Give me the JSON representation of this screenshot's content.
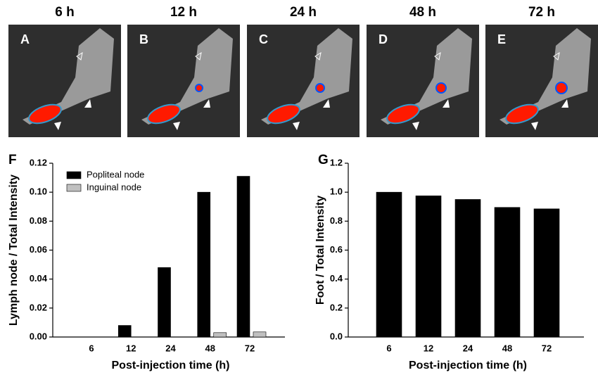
{
  "panels": [
    {
      "time": "6 h",
      "letter": "A"
    },
    {
      "time": "12 h",
      "letter": "B"
    },
    {
      "time": "24 h",
      "letter": "C"
    },
    {
      "time": "48 h",
      "letter": "D"
    },
    {
      "time": "72 h",
      "letter": "E"
    }
  ],
  "chart_data": [
    {
      "type": "bar",
      "panel": "F",
      "ylabel": "Lymph node / Total Intensity",
      "xlabel": "Post-injection time (h)",
      "categories": [
        "6",
        "12",
        "24",
        "48",
        "72"
      ],
      "series": [
        {
          "name": "Popliteal node",
          "color": "#000000",
          "values": [
            0,
            0.008,
            0.048,
            0.1,
            0.111
          ]
        },
        {
          "name": "Inguinal node",
          "color": "#c0c0c0",
          "values": [
            0,
            0,
            0,
            0.003,
            0.0035
          ]
        }
      ],
      "ylim": [
        0,
        0.12
      ],
      "yticks": [
        {
          "value": 0,
          "label": "0.00"
        },
        0.02,
        0.04,
        0.06,
        0.08,
        {
          "value": 0.1,
          "label": "0.10"
        },
        0.12
      ],
      "legend": "upper left"
    },
    {
      "type": "bar",
      "panel": "G",
      "ylabel": "Foot / Total Intensity",
      "xlabel": "Post-injection time (h)",
      "categories": [
        "6",
        "12",
        "24",
        "48",
        "72"
      ],
      "values": [
        1.0,
        0.975,
        0.95,
        0.895,
        0.885
      ],
      "color": "#000000",
      "ylim": [
        0,
        1.2
      ],
      "yticks": [
        {
          "value": 0,
          "label": "0.0"
        },
        0.2,
        0.4,
        0.6,
        0.8,
        {
          "value": 1,
          "label": "1.0"
        },
        1.2
      ]
    }
  ]
}
